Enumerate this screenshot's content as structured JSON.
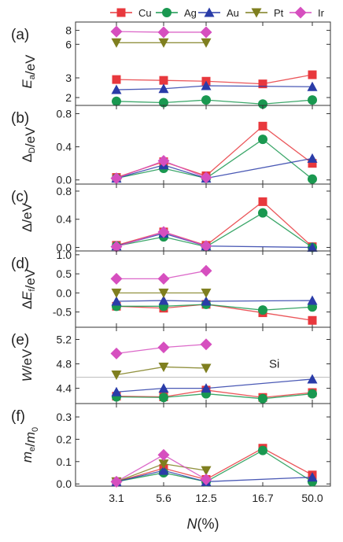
{
  "legend": [
    {
      "name": "Cu",
      "color": "#e8383d",
      "marker": "square"
    },
    {
      "name": "Ag",
      "color": "#1a9850",
      "marker": "circle"
    },
    {
      "name": "Au",
      "color": "#2a3ca8",
      "marker": "triangle-up"
    },
    {
      "name": "Pt",
      "color": "#7f7f1f",
      "marker": "triangle-down"
    },
    {
      "name": "Ir",
      "color": "#d64fbf",
      "marker": "diamond"
    }
  ],
  "xlabel": "N(%)",
  "chart_data": [
    {
      "type": "line",
      "panel": "(a)",
      "ylabel": "Ea/eV",
      "ylog": true,
      "ylim": [
        1.7,
        9.5
      ],
      "yticks": [
        2,
        3,
        6,
        8
      ],
      "categories": [
        "3.1",
        "5.6",
        "12.5",
        "16.7",
        "50.0"
      ],
      "series": [
        {
          "name": "Cu",
          "values": [
            2.9,
            2.85,
            2.8,
            2.65,
            3.2
          ]
        },
        {
          "name": "Ag",
          "values": [
            1.85,
            1.8,
            1.9,
            1.75,
            1.9
          ]
        },
        {
          "name": "Au",
          "values": [
            2.35,
            2.4,
            2.55,
            null,
            2.5
          ]
        },
        {
          "name": "Pt",
          "values": [
            6.2,
            6.2,
            6.2,
            null,
            null
          ]
        },
        {
          "name": "Ir",
          "values": [
            7.8,
            7.7,
            7.7,
            null,
            null
          ]
        }
      ]
    },
    {
      "type": "line",
      "panel": "(b)",
      "ylabel": "ΔD/eV",
      "ylim": [
        -0.05,
        0.9
      ],
      "yticks": [
        0.0,
        0.4,
        0.8
      ],
      "categories": [
        "3.1",
        "5.6",
        "12.5",
        "16.7",
        "50.0"
      ],
      "series": [
        {
          "name": "Cu",
          "values": [
            0.03,
            0.22,
            0.05,
            0.65,
            0.2
          ]
        },
        {
          "name": "Ag",
          "values": [
            0.02,
            0.14,
            0.02,
            0.49,
            0.01
          ]
        },
        {
          "name": "Au",
          "values": [
            0.02,
            0.18,
            0.02,
            null,
            0.26
          ]
        },
        {
          "name": "Ir",
          "values": [
            0.02,
            0.23,
            0.03,
            null,
            null
          ]
        }
      ]
    },
    {
      "type": "line",
      "panel": "(c)",
      "ylabel": "Δ/eV",
      "ylim": [
        -0.05,
        0.9
      ],
      "yticks": [
        0.0,
        0.4,
        0.8
      ],
      "categories": [
        "3.1",
        "5.6",
        "12.5",
        "16.7",
        "50.0"
      ],
      "series": [
        {
          "name": "Cu",
          "values": [
            0.03,
            0.22,
            0.03,
            0.65,
            0.01
          ]
        },
        {
          "name": "Ag",
          "values": [
            0.02,
            0.15,
            0.01,
            0.49,
            0.0
          ]
        },
        {
          "name": "Au",
          "values": [
            0.02,
            0.2,
            0.02,
            null,
            0.0
          ]
        },
        {
          "name": "Ir",
          "values": [
            0.01,
            0.22,
            0.02,
            null,
            null
          ]
        }
      ]
    },
    {
      "type": "line",
      "panel": "(d)",
      "ylabel": "ΔEf/eV",
      "ylim": [
        -0.9,
        1.1
      ],
      "yticks": [
        -0.5,
        0.0,
        0.5,
        1.0
      ],
      "categories": [
        "3.1",
        "5.6",
        "12.5",
        "16.7",
        "50.0"
      ],
      "series": [
        {
          "name": "Cu",
          "values": [
            -0.35,
            -0.4,
            -0.3,
            -0.52,
            -0.72
          ]
        },
        {
          "name": "Ag",
          "values": [
            -0.35,
            -0.35,
            -0.3,
            -0.45,
            -0.37
          ]
        },
        {
          "name": "Au",
          "values": [
            -0.22,
            -0.2,
            -0.22,
            null,
            -0.2
          ]
        },
        {
          "name": "Pt",
          "values": [
            0.0,
            0.0,
            0.0,
            null,
            null
          ]
        },
        {
          "name": "Ir",
          "values": [
            0.37,
            0.37,
            0.58,
            null,
            null
          ]
        }
      ]
    },
    {
      "type": "line",
      "panel": "(e)",
      "ylabel": "W/eV",
      "ylim": [
        4.15,
        5.4
      ],
      "yticks": [
        4.4,
        4.8,
        5.2
      ],
      "categories": [
        "3.1",
        "5.6",
        "12.5",
        "16.7",
        "50.0"
      ],
      "annotation": "Si",
      "reference_line": 4.58,
      "series": [
        {
          "name": "Cu",
          "values": [
            4.27,
            4.26,
            4.37,
            4.25,
            4.33
          ]
        },
        {
          "name": "Ag",
          "values": [
            4.26,
            4.25,
            4.31,
            4.23,
            4.31
          ]
        },
        {
          "name": "Au",
          "values": [
            4.34,
            4.4,
            4.4,
            null,
            4.55
          ]
        },
        {
          "name": "Pt",
          "values": [
            4.62,
            4.75,
            4.73,
            null,
            null
          ]
        },
        {
          "name": "Ir",
          "values": [
            4.97,
            5.07,
            5.12,
            null,
            null
          ]
        }
      ]
    },
    {
      "type": "line",
      "panel": "(f)",
      "ylabel": "me/m0",
      "ylim": [
        -0.01,
        0.36
      ],
      "yticks": [
        0.0,
        0.1,
        0.2,
        0.3
      ],
      "categories": [
        "3.1",
        "5.6",
        "12.5",
        "16.7",
        "50.0"
      ],
      "series": [
        {
          "name": "Cu",
          "values": [
            0.01,
            0.07,
            0.02,
            0.16,
            0.04
          ]
        },
        {
          "name": "Ag",
          "values": [
            0.01,
            0.05,
            0.01,
            0.15,
            0.01
          ]
        },
        {
          "name": "Au",
          "values": [
            0.01,
            0.06,
            0.01,
            null,
            0.03
          ]
        },
        {
          "name": "Pt",
          "values": [
            0.01,
            0.09,
            0.06,
            null,
            null
          ]
        },
        {
          "name": "Ir",
          "values": [
            0.01,
            0.13,
            0.02,
            null,
            null
          ]
        }
      ]
    }
  ]
}
